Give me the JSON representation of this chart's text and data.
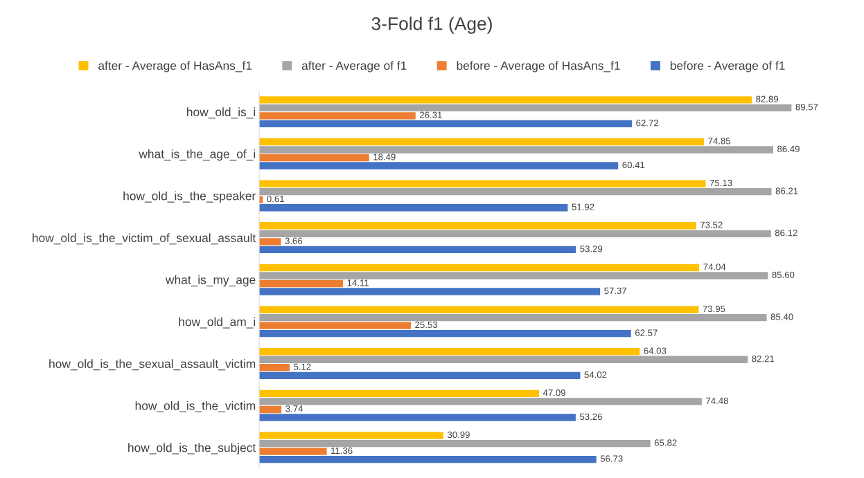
{
  "chart_data": {
    "type": "bar",
    "orientation": "horizontal",
    "title": "3-Fold f1 (Age)",
    "categories": [
      "how_old_is_i",
      "what_is_the_age_of_i",
      "how_old_is_the_speaker",
      "how_old_is_the_victim_of_sexual_assault",
      "what_is_my_age",
      "how_old_am_i",
      "how_old_is_the_sexual_assault_victim",
      "how_old_is_the_victim",
      "how_old_is_the_subject"
    ],
    "series": [
      {
        "name": "after - Average of HasAns_f1",
        "color": "#ffc000",
        "values": [
          82.89,
          74.85,
          75.13,
          73.52,
          74.04,
          73.95,
          64.03,
          47.09,
          30.99
        ],
        "value_labels": [
          "82.89",
          "74.85",
          "75.13",
          "73.52",
          "74.04",
          "73.95",
          "64.03",
          "47.09",
          "30.99"
        ]
      },
      {
        "name": "after - Average of f1",
        "color": "#a5a5a5",
        "values": [
          89.57,
          86.49,
          86.21,
          86.12,
          85.6,
          85.4,
          82.21,
          74.48,
          65.82
        ],
        "value_labels": [
          "89.57",
          "86.49",
          "86.21",
          "86.12",
          "85.60",
          "85.40",
          "82.21",
          "74.48",
          "65.82"
        ]
      },
      {
        "name": "before - Average of HasAns_f1",
        "color": "#ed7d31",
        "values": [
          26.31,
          18.49,
          0.61,
          3.66,
          14.11,
          25.53,
          5.12,
          3.74,
          11.36
        ],
        "value_labels": [
          "26.31",
          "18.49",
          "0.61",
          "3.66",
          "14.11",
          "25.53",
          "5.12",
          "3.74",
          "11.36"
        ]
      },
      {
        "name": "before - Average of f1",
        "color": "#4472c4",
        "values": [
          62.72,
          60.41,
          51.92,
          53.29,
          57.37,
          62.57,
          54.02,
          53.26,
          56.73
        ],
        "value_labels": [
          "62.72",
          "60.41",
          "51.92",
          "53.29",
          "57.37",
          "62.57",
          "54.02",
          "53.26",
          "56.73"
        ]
      }
    ],
    "legend": "top",
    "grid": false,
    "tick_labels": "y"
  }
}
